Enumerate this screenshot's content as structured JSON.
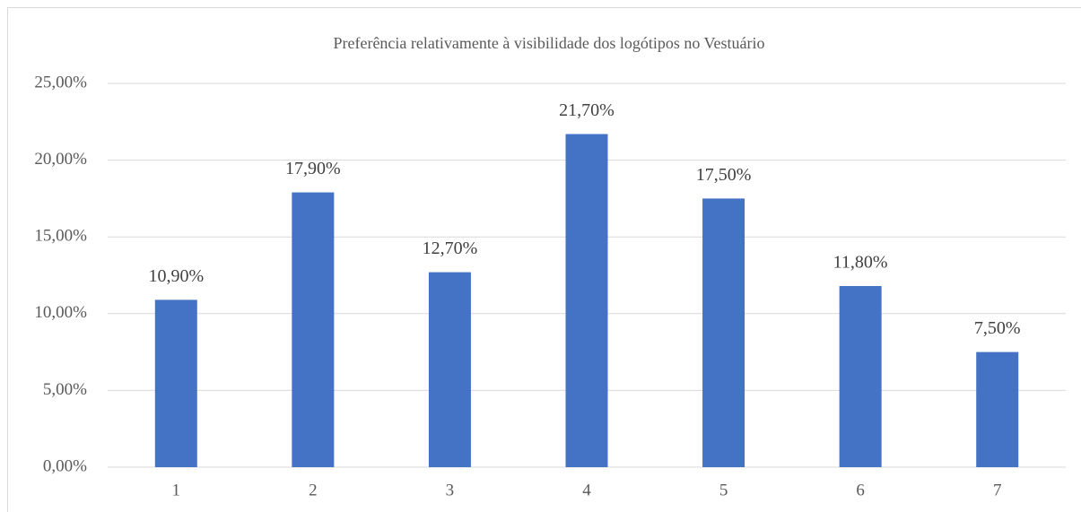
{
  "chart_data": {
    "type": "bar",
    "title": "Preferência relativamente à visibilidade dos logótipos no Vestuário",
    "categories": [
      "1",
      "2",
      "3",
      "4",
      "5",
      "6",
      "7"
    ],
    "values": [
      10.9,
      17.9,
      12.7,
      21.7,
      17.5,
      11.8,
      7.5
    ],
    "value_labels": [
      "10,90%",
      "17,90%",
      "12,70%",
      "21,70%",
      "17,50%",
      "11,80%",
      "7,50%"
    ],
    "color": "#4472c4",
    "ylim": [
      0,
      25
    ],
    "yticks": [
      {
        "value": 0,
        "label": "0,00%"
      },
      {
        "value": 5,
        "label": "5,00%"
      },
      {
        "value": 10,
        "label": "10,00%"
      },
      {
        "value": 15,
        "label": "15,00%"
      },
      {
        "value": 20,
        "label": "20,00%"
      },
      {
        "value": 25,
        "label": "25,00%"
      }
    ],
    "grid": true
  }
}
